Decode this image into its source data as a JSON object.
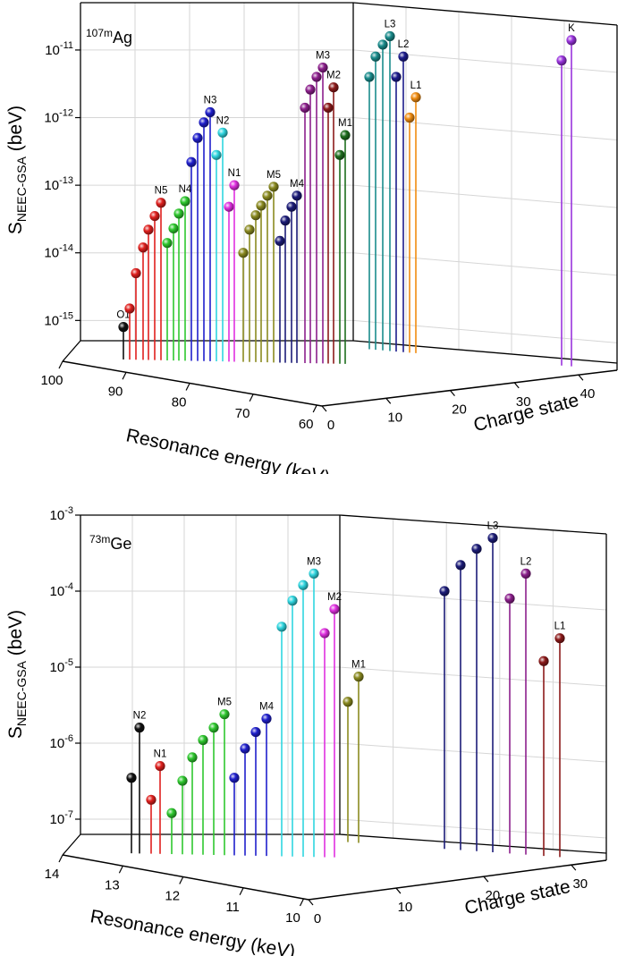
{
  "chart_data": [
    {
      "type": "3d-stem",
      "isotope_mass": "107m",
      "isotope_symbol": "Ag",
      "zlabel_main": "S",
      "zlabel_sub": "NEEC-GSA",
      "zlabel_unit": " (beV)",
      "xlabel": "Resonance energy (keV)",
      "ylabel": "Charge state",
      "x_ticks": [
        "100",
        "90",
        "80",
        "70",
        "60"
      ],
      "y_ticks": [
        "0",
        "10",
        "20",
        "30",
        "40"
      ],
      "z_ticks": [
        {
          "base": "10",
          "exp": "-15"
        },
        {
          "base": "10",
          "exp": "-14"
        },
        {
          "base": "10",
          "exp": "-13"
        },
        {
          "base": "10",
          "exp": "-12"
        },
        {
          "base": "10",
          "exp": "-11"
        }
      ],
      "zlim_log10": [
        -15.3,
        -10.3
      ],
      "series": [
        {
          "name": "O1",
          "color": "#111111",
          "values": [
            8e-16
          ]
        },
        {
          "name": "N5",
          "color": "#e0201e",
          "values": [
            1.5e-15,
            5e-15,
            1.2e-14,
            2.2e-14,
            3.5e-14,
            5.5e-14
          ]
        },
        {
          "name": "N4",
          "color": "#2ec82e",
          "values": [
            1.4e-14,
            2.3e-14,
            3.8e-14,
            5.8e-14
          ]
        },
        {
          "name": "N3",
          "color": "#1f1fcc",
          "values": [
            2.2e-13,
            5e-13,
            8.5e-13,
            1.2e-12
          ]
        },
        {
          "name": "N2",
          "color": "#2fd6e0",
          "values": [
            2.8e-13,
            6e-13
          ]
        },
        {
          "name": "N1",
          "color": "#e030e0",
          "values": [
            4.8e-14,
            1e-13
          ]
        },
        {
          "name": "M5",
          "color": "#8a8a20",
          "values": [
            1e-14,
            2.2e-14,
            3.6e-14,
            5e-14,
            7e-14,
            9.5e-14
          ]
        },
        {
          "name": "M4",
          "color": "#1c1c78",
          "values": [
            1.5e-14,
            3e-14,
            4.8e-14,
            7e-14
          ]
        },
        {
          "name": "M3",
          "color": "#8c1f8c",
          "values": [
            1.4e-12,
            2.6e-12,
            4e-12,
            5.5e-12
          ]
        },
        {
          "name": "M2",
          "color": "#8c1a1a",
          "values": [
            1.4e-12,
            2.8e-12
          ]
        },
        {
          "name": "M1",
          "color": "#1e6e1e",
          "values": [
            2.8e-13,
            5.5e-13
          ]
        },
        {
          "name": "L3",
          "color": "#1a8c8c",
          "values": [
            4e-12,
            8e-12,
            1.2e-11,
            1.6e-11
          ]
        },
        {
          "name": "L2",
          "color": "#1c1c8c",
          "values": [
            4e-12,
            8e-12
          ]
        },
        {
          "name": "L1",
          "color": "#f08c10",
          "values": [
            1e-12,
            2e-12
          ]
        },
        {
          "name": "K",
          "color": "#9933dd",
          "values": [
            7e-12,
            1.4e-11
          ]
        }
      ]
    },
    {
      "type": "3d-stem",
      "isotope_mass": "73m",
      "isotope_symbol": "Ge",
      "zlabel_main": "S",
      "zlabel_sub": "NEEC-GSA",
      "zlabel_unit": " (beV)",
      "xlabel": "Resonance energy (keV)",
      "ylabel": "Charge state",
      "x_ticks": [
        "14",
        "13",
        "12",
        "11",
        "10"
      ],
      "y_ticks": [
        "0",
        "10",
        "20",
        "30"
      ],
      "z_ticks": [
        {
          "base": "10",
          "exp": "-7"
        },
        {
          "base": "10",
          "exp": "-6"
        },
        {
          "base": "10",
          "exp": "-5"
        },
        {
          "base": "10",
          "exp": "-4"
        },
        {
          "base": "10",
          "exp": "-3"
        }
      ],
      "zlim_log10": [
        -7.2,
        -3.0
      ],
      "series": [
        {
          "name": "N2",
          "color": "#111111",
          "values": [
            3.5e-07,
            1.6e-06
          ]
        },
        {
          "name": "N1",
          "color": "#e0201e",
          "values": [
            1.8e-07,
            5e-07
          ]
        },
        {
          "name": "M5",
          "color": "#2ec82e",
          "values": [
            1.2e-07,
            3.2e-07,
            6.5e-07,
            1.1e-06,
            1.6e-06,
            2.4e-06
          ]
        },
        {
          "name": "M4",
          "color": "#1f1fcc",
          "values": [
            3.5e-07,
            8.5e-07,
            1.4e-06,
            2.1e-06
          ]
        },
        {
          "name": "M3",
          "color": "#2fd6e0",
          "values": [
            3.4e-05,
            7.5e-05,
            0.00012,
            0.00017
          ]
        },
        {
          "name": "M2",
          "color": "#e030e0",
          "values": [
            2.8e-05,
            5.8e-05
          ]
        },
        {
          "name": "M1",
          "color": "#8a8a20",
          "values": [
            3.5e-06,
            7.5e-06
          ]
        },
        {
          "name": "L3",
          "color": "#1c1c78",
          "values": [
            0.0001,
            0.00022,
            0.00036,
            0.0005
          ]
        },
        {
          "name": "L2",
          "color": "#8c1f8c",
          "values": [
            8e-05,
            0.00017
          ]
        },
        {
          "name": "L1",
          "color": "#8c1a1a",
          "values": [
            1.2e-05,
            2.4e-05
          ]
        }
      ]
    }
  ]
}
